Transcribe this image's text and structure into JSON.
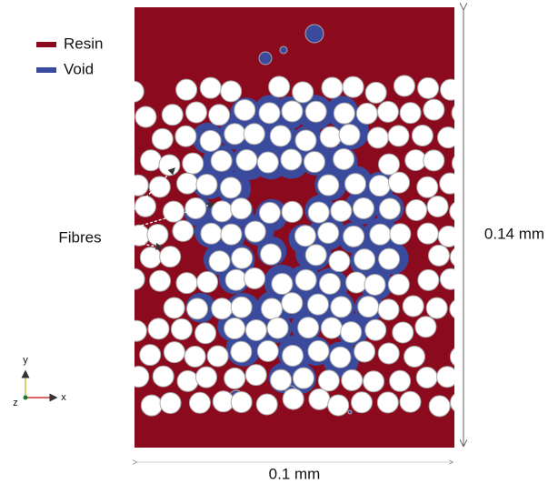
{
  "legend": {
    "items": [
      {
        "label": "Resin",
        "color": "#8b0a1e"
      },
      {
        "label": "Void",
        "color": "#3a4a9c"
      }
    ]
  },
  "annotations": {
    "fibres": "Fibres",
    "height": "0.14 mm",
    "width": "0.1 mm"
  },
  "axes_triad": {
    "y": "y",
    "z": "z",
    "x": "x"
  }
}
